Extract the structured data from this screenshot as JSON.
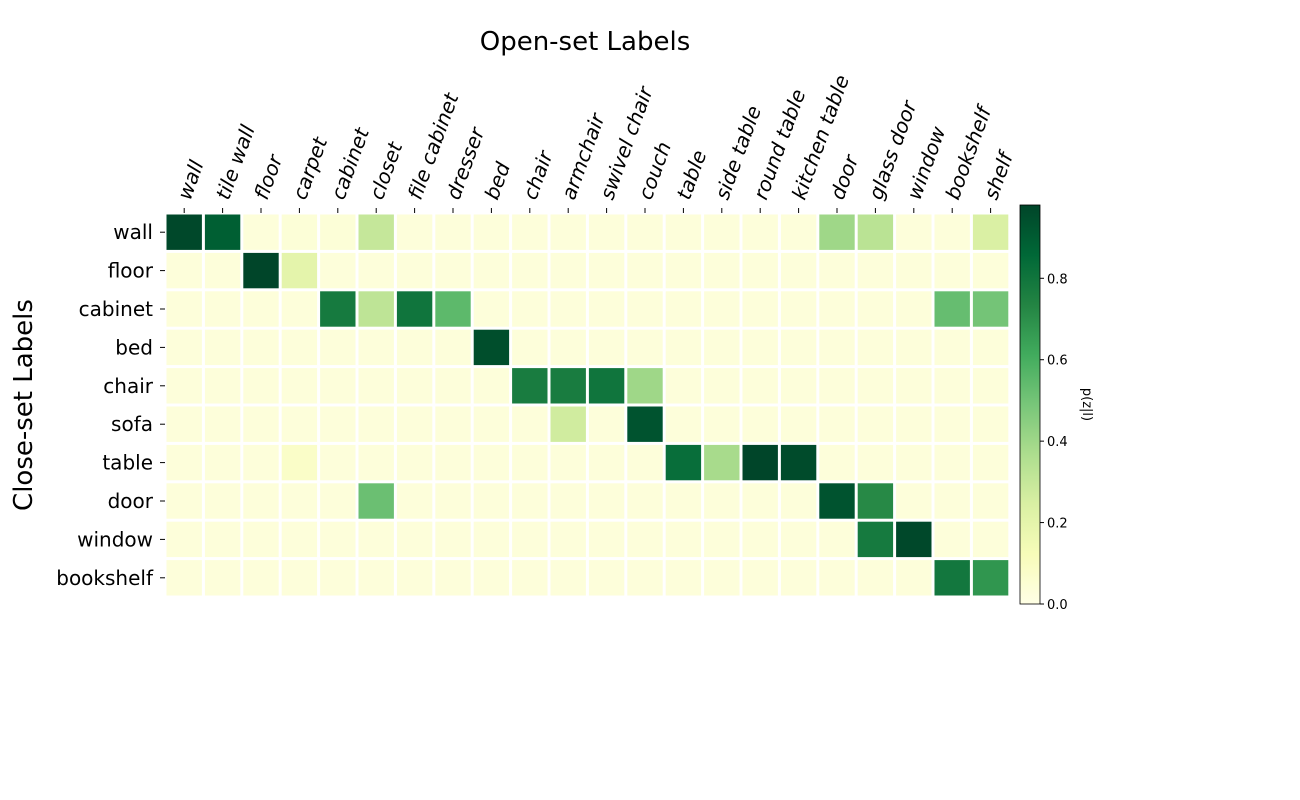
{
  "chart_data": {
    "type": "heatmap",
    "title": "Open-set Labels",
    "xlabel": "",
    "ylabel": "Close-set Labels",
    "x_tick_labels": [
      "wall",
      "tile wall",
      "floor",
      "carpet",
      "cabinet",
      "closet",
      "file cabinet",
      "dresser",
      "bed",
      "chair",
      "armchair",
      "swivel chair",
      "couch",
      "table",
      "side table",
      "round table",
      "kitchen table",
      "door",
      "glass door",
      "window",
      "bookshelf",
      "shelf"
    ],
    "y_tick_labels": [
      "wall",
      "floor",
      "cabinet",
      "bed",
      "chair",
      "sofa",
      "table",
      "door",
      "window",
      "bookshelf"
    ],
    "values": [
      [
        0.97,
        0.89,
        0.03,
        0.04,
        0.04,
        0.3,
        0.03,
        0.03,
        0.03,
        0.03,
        0.03,
        0.03,
        0.03,
        0.03,
        0.03,
        0.03,
        0.03,
        0.4,
        0.33,
        0.03,
        0.03,
        0.24
      ],
      [
        0.03,
        0.03,
        0.98,
        0.2,
        0.03,
        0.03,
        0.03,
        0.03,
        0.03,
        0.03,
        0.03,
        0.03,
        0.03,
        0.03,
        0.03,
        0.03,
        0.03,
        0.03,
        0.03,
        0.03,
        0.03,
        0.03
      ],
      [
        0.03,
        0.03,
        0.03,
        0.03,
        0.78,
        0.32,
        0.8,
        0.55,
        0.03,
        0.03,
        0.03,
        0.03,
        0.03,
        0.03,
        0.03,
        0.03,
        0.03,
        0.03,
        0.03,
        0.03,
        0.53,
        0.5
      ],
      [
        0.03,
        0.03,
        0.03,
        0.03,
        0.03,
        0.03,
        0.03,
        0.03,
        0.95,
        0.03,
        0.03,
        0.03,
        0.03,
        0.03,
        0.03,
        0.03,
        0.03,
        0.03,
        0.03,
        0.03,
        0.03,
        0.03
      ],
      [
        0.03,
        0.03,
        0.03,
        0.03,
        0.03,
        0.03,
        0.03,
        0.03,
        0.03,
        0.77,
        0.77,
        0.8,
        0.4,
        0.03,
        0.03,
        0.03,
        0.03,
        0.03,
        0.03,
        0.03,
        0.03,
        0.03
      ],
      [
        0.03,
        0.03,
        0.03,
        0.03,
        0.03,
        0.03,
        0.03,
        0.03,
        0.03,
        0.03,
        0.27,
        0.03,
        0.93,
        0.03,
        0.03,
        0.03,
        0.03,
        0.03,
        0.03,
        0.03,
        0.03,
        0.03
      ],
      [
        0.03,
        0.03,
        0.03,
        0.08,
        0.03,
        0.03,
        0.03,
        0.03,
        0.03,
        0.03,
        0.03,
        0.03,
        0.03,
        0.83,
        0.38,
        0.98,
        0.96,
        0.03,
        0.03,
        0.03,
        0.03,
        0.03
      ],
      [
        0.03,
        0.03,
        0.03,
        0.03,
        0.03,
        0.52,
        0.03,
        0.03,
        0.03,
        0.03,
        0.03,
        0.03,
        0.03,
        0.03,
        0.03,
        0.03,
        0.03,
        0.93,
        0.72,
        0.03,
        0.03,
        0.03
      ],
      [
        0.03,
        0.03,
        0.03,
        0.03,
        0.03,
        0.03,
        0.03,
        0.03,
        0.03,
        0.03,
        0.03,
        0.03,
        0.03,
        0.03,
        0.03,
        0.03,
        0.03,
        0.03,
        0.78,
        0.97,
        0.03,
        0.03
      ],
      [
        0.03,
        0.03,
        0.03,
        0.03,
        0.03,
        0.03,
        0.03,
        0.03,
        0.03,
        0.03,
        0.03,
        0.03,
        0.03,
        0.03,
        0.03,
        0.03,
        0.03,
        0.03,
        0.03,
        0.03,
        0.79,
        0.68
      ]
    ],
    "colorbar": {
      "label": "p(z|l)",
      "range": [
        0,
        0.98
      ],
      "ticks": [
        "0.0",
        "0.2",
        "0.4",
        "0.6",
        "0.8"
      ],
      "colormap": "YlGn"
    },
    "grid": false,
    "cell_separator_color": "#ffffff"
  }
}
